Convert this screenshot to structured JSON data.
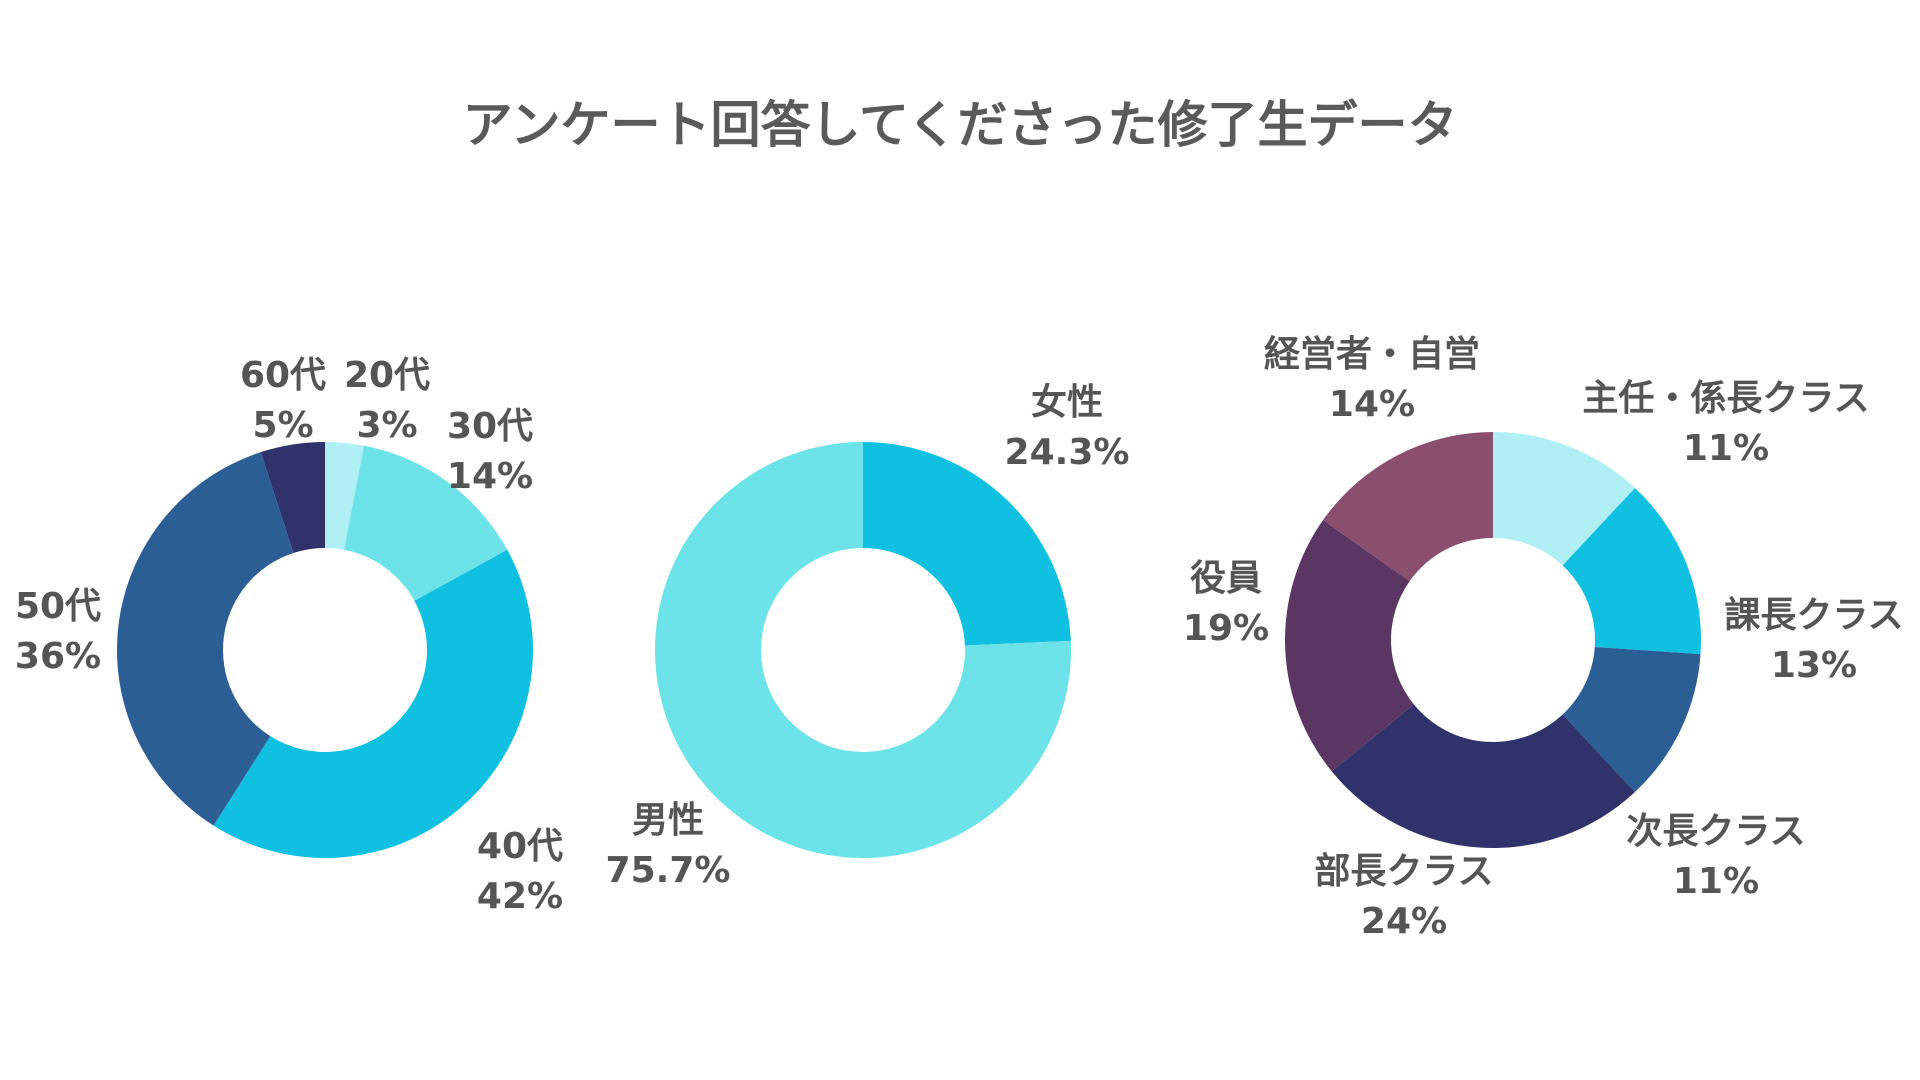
{
  "title": "アンケート回答してくださった修了生データ",
  "chart_data": [
    {
      "type": "pie",
      "donut": true,
      "slices": [
        {
          "name": "20代",
          "value": 3,
          "label": "3%",
          "color": "#b0f0f5"
        },
        {
          "name": "30代",
          "value": 14,
          "label": "14%",
          "color": "#6ce3e8"
        },
        {
          "name": "40代",
          "value": 42,
          "label": "42%",
          "color": "#0fc0e0"
        },
        {
          "name": "50代",
          "value": 36,
          "label": "36%",
          "color": "#2c5e96"
        },
        {
          "name": "60代",
          "value": 5,
          "label": "5%",
          "color": "#30336b"
        }
      ]
    },
    {
      "type": "pie",
      "donut": true,
      "slices": [
        {
          "name": "女性",
          "value": 24.3,
          "label": "24.3%",
          "color": "#0fc0e0"
        },
        {
          "name": "男性",
          "value": 75.7,
          "label": "75.7%",
          "color": "#6ce3e8"
        }
      ]
    },
    {
      "type": "pie",
      "donut": true,
      "slices": [
        {
          "name": "主任・係長クラス",
          "value": 11,
          "label": "11%",
          "color": "#b0f0f5"
        },
        {
          "name": "課長クラス",
          "value": 13,
          "label": "13%",
          "color": "#0fc0e0"
        },
        {
          "name": "次長クラス",
          "value": 11,
          "label": "11%",
          "color": "#2c5e96"
        },
        {
          "name": "部長クラス",
          "value": 24,
          "label": "24%",
          "color": "#30336b"
        },
        {
          "name": "役員",
          "value": 19,
          "label": "19%",
          "color": "#5c3663"
        },
        {
          "name": "経営者・自営",
          "value": 14,
          "label": "14%",
          "color": "#8a4f6f"
        }
      ]
    }
  ]
}
